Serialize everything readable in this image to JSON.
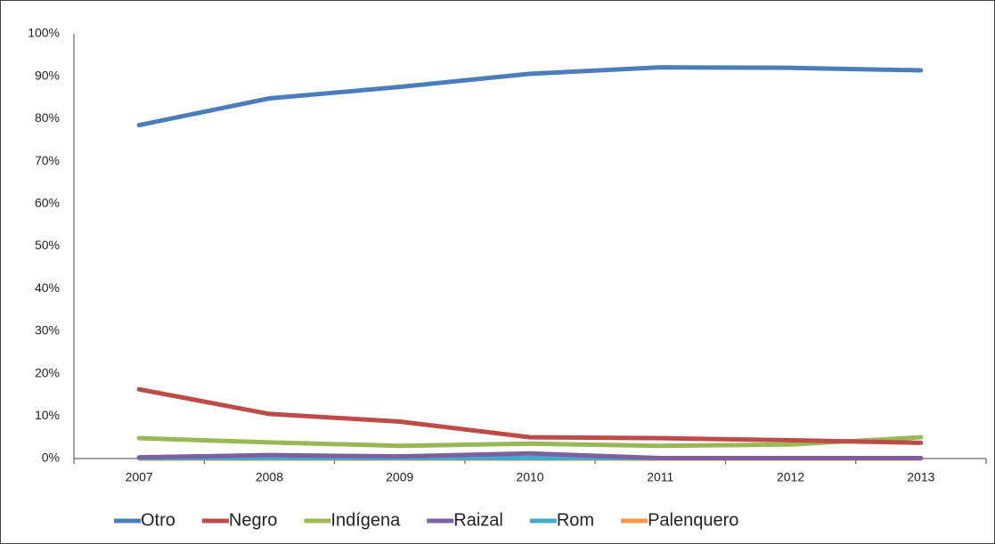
{
  "chart_data": {
    "type": "line",
    "categories": [
      "2007",
      "2008",
      "2009",
      "2010",
      "2011",
      "2012",
      "2013"
    ],
    "series": [
      {
        "name": "Otro",
        "color": "#4a7ebb",
        "values": [
          78.5,
          84.8,
          87.5,
          90.6,
          92.1,
          92.0,
          91.4
        ]
      },
      {
        "name": "Negro",
        "color": "#be4b48",
        "values": [
          16.3,
          10.5,
          8.7,
          5.0,
          4.8,
          4.3,
          3.7
        ]
      },
      {
        "name": "Indígena",
        "color": "#98b954",
        "values": [
          4.8,
          3.8,
          3.0,
          3.5,
          3.0,
          3.3,
          5.0
        ]
      },
      {
        "name": "Raizal",
        "color": "#7d60a0",
        "values": [
          0.3,
          0.8,
          0.5,
          1.2,
          0.1,
          0.1,
          0.1
        ]
      },
      {
        "name": "Rom",
        "color": "#46aac5",
        "values": [
          0.1,
          0.1,
          0.1,
          0.1,
          0.1,
          0.1,
          0.1
        ]
      },
      {
        "name": "Palenquero",
        "color": "#f79646",
        "values": [
          0,
          0,
          0,
          0,
          0,
          0,
          0
        ]
      }
    ],
    "ylim": [
      0,
      100
    ],
    "yticks": [
      {
        "value": 0,
        "label": "0%"
      },
      {
        "value": 10,
        "label": "10%"
      },
      {
        "value": 20,
        "label": "20%"
      },
      {
        "value": 30,
        "label": "30%"
      },
      {
        "value": 40,
        "label": "40%"
      },
      {
        "value": 50,
        "label": "50%"
      },
      {
        "value": 60,
        "label": "60%"
      },
      {
        "value": 70,
        "label": "70%"
      },
      {
        "value": 80,
        "label": "80%"
      },
      {
        "value": 90,
        "label": "90%"
      },
      {
        "value": 100,
        "label": "100%"
      }
    ],
    "grid": false,
    "legend": "bottom"
  }
}
